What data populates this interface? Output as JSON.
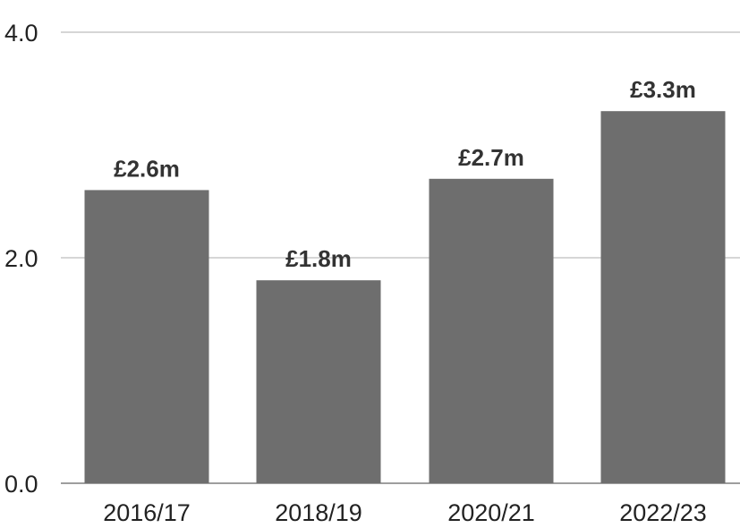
{
  "chart_data": {
    "type": "bar",
    "title": "",
    "xlabel": "",
    "ylabel": "",
    "categories": [
      "2016/17",
      "2018/19",
      "2020/21",
      "2022/23"
    ],
    "values": [
      2.6,
      1.8,
      2.7,
      3.3
    ],
    "data_labels": [
      "£2.6m",
      "£1.8m",
      "£2.7m",
      "£3.3m"
    ],
    "ylim": [
      0,
      4
    ],
    "yticks": [
      0,
      2,
      4
    ],
    "ytick_labels": [
      "0.0",
      "2.0",
      "4.0"
    ],
    "grid": true,
    "legend": "none",
    "colors": {
      "bar": "#6e6e6e",
      "grid": "#bdbdbd",
      "baseline": "#9e9e9e",
      "tick_text": "#222222",
      "data_label_text": "#333333"
    }
  }
}
